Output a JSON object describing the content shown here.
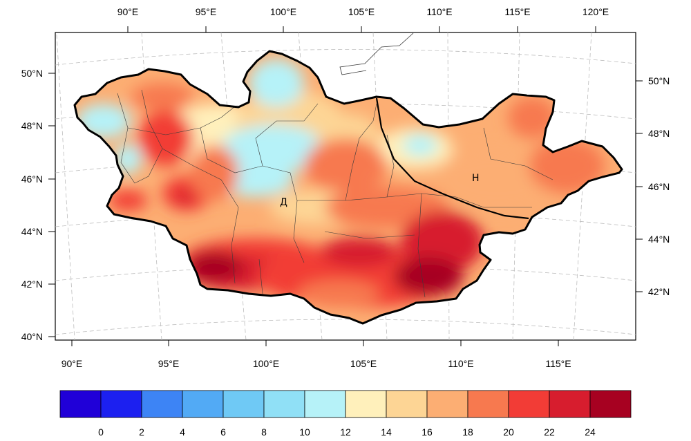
{
  "map": {
    "lon_ticks_top": [
      "90°E",
      "95°E",
      "100°E",
      "105°E",
      "110°E",
      "115°E",
      "120°E"
    ],
    "lon_ticks_bottom": [
      "90°E",
      "95°E",
      "100°E",
      "105°E",
      "110°E",
      "115°E"
    ],
    "lat_ticks_left": [
      "50°N",
      "48°N",
      "46°N",
      "44°N",
      "42°N",
      "40°N"
    ],
    "lat_ticks_right": [
      "50°N",
      "48°N",
      "46°N",
      "44°N",
      "42°N"
    ],
    "region_labels": {
      "west": {
        "text": "Д",
        "color": "#e8302a"
      },
      "east": {
        "text": "Н",
        "color": "#000000"
      }
    }
  },
  "colorbar": {
    "tick_labels": [
      "0",
      "2",
      "4",
      "6",
      "8",
      "10",
      "12",
      "14",
      "16",
      "18",
      "20",
      "22",
      "24"
    ],
    "colors": [
      "#2000d8",
      "#1c20f0",
      "#3d84f5",
      "#52aaf5",
      "#6fc9f5",
      "#90e0f6",
      "#b6f2f8",
      "#fff0bb",
      "#fdd595",
      "#fcae73",
      "#f7794f",
      "#f23c36",
      "#d71d2e",
      "#a70121"
    ]
  }
}
